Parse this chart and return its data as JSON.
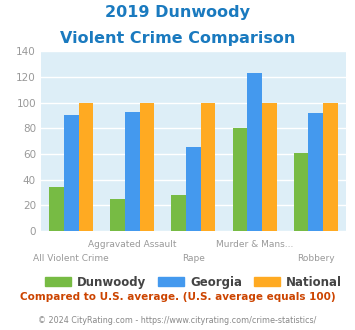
{
  "title_line1": "2019 Dunwoody",
  "title_line2": "Violent Crime Comparison",
  "title_color": "#1a7abf",
  "categories": [
    "All Violent Crime",
    "Aggravated Assault",
    "Rape",
    "Murder & Mans...",
    "Robbery"
  ],
  "top_labels": [
    "",
    "Aggravated Assault",
    "",
    "Murder & Mans...",
    ""
  ],
  "bot_labels": [
    "All Violent Crime",
    "",
    "Rape",
    "",
    "Robbery"
  ],
  "dunwoody": [
    34,
    25,
    28,
    80,
    61
  ],
  "georgia": [
    90,
    93,
    65,
    123,
    92
  ],
  "national": [
    100,
    100,
    100,
    100,
    100
  ],
  "dunwoody_color": "#77bb44",
  "georgia_color": "#4499ee",
  "national_color": "#ffaa22",
  "ylim": [
    0,
    140
  ],
  "yticks": [
    0,
    20,
    40,
    60,
    80,
    100,
    120,
    140
  ],
  "plot_bg_color": "#ddeef7",
  "grid_color": "#ffffff",
  "legend_labels": [
    "Dunwoody",
    "Georgia",
    "National"
  ],
  "footer_text": "Compared to U.S. average. (U.S. average equals 100)",
  "footer_color": "#cc4400",
  "copyright_text": "© 2024 CityRating.com - https://www.cityrating.com/crime-statistics/",
  "copyright_color": "#888888",
  "tick_label_color": "#999999",
  "bar_width": 0.24
}
